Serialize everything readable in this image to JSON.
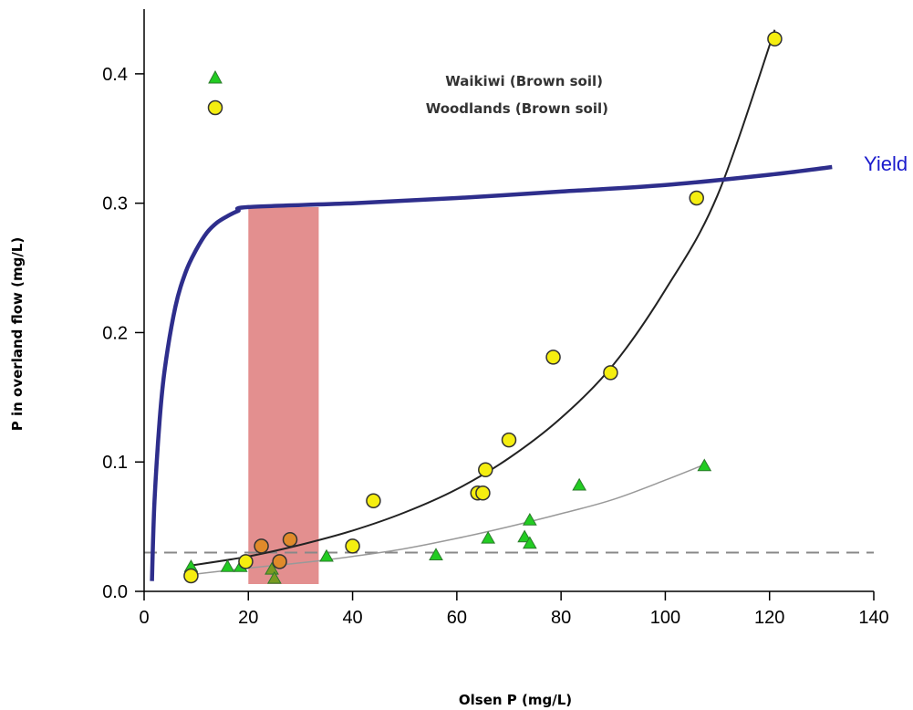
{
  "chart_data": {
    "type": "scatter",
    "xlabel": "Olsen P (mg/L)",
    "ylabel": "P in overland flow (mg/L)",
    "xlim": [
      0,
      140
    ],
    "ylim": [
      0,
      0.45
    ],
    "x_ticks": [
      "0",
      "20",
      "40",
      "60",
      "80",
      "100",
      "120",
      "140"
    ],
    "y_ticks": [
      "0.0",
      "0.1",
      "0.2",
      "0.3",
      "0.4"
    ],
    "legend": {
      "placement": "top-left",
      "entries": [
        {
          "label": "Waikiwi (Brown soil)",
          "marker": "triangle",
          "color": "#22cc22"
        },
        {
          "label": "Woodlands (Brown soil)",
          "marker": "circle",
          "color": "#f5ee10"
        }
      ]
    },
    "series": [
      {
        "name": "Waikiwi (Brown soil)",
        "marker": "triangle",
        "color": "#22cc22",
        "points": [
          [
            9,
            0.019
          ],
          [
            16,
            0.019
          ],
          [
            18.5,
            0.019
          ],
          [
            24.5,
            0.017
          ],
          [
            25,
            0.01
          ],
          [
            35,
            0.027
          ],
          [
            56,
            0.028
          ],
          [
            66,
            0.041
          ],
          [
            73,
            0.042
          ],
          [
            74,
            0.055
          ],
          [
            74,
            0.037
          ],
          [
            83.5,
            0.082
          ],
          [
            107.5,
            0.097
          ]
        ]
      },
      {
        "name": "Woodlands (Brown soil)",
        "marker": "circle",
        "color": "#f5ee10",
        "points": [
          [
            9,
            0.012
          ],
          [
            19.5,
            0.023
          ],
          [
            22.5,
            0.035
          ],
          [
            26,
            0.023
          ],
          [
            28,
            0.04
          ],
          [
            40,
            0.035
          ],
          [
            44,
            0.07
          ],
          [
            64,
            0.076
          ],
          [
            65,
            0.076
          ],
          [
            65.5,
            0.094
          ],
          [
            70,
            0.117
          ],
          [
            78.5,
            0.181
          ],
          [
            89.5,
            0.169
          ],
          [
            106,
            0.304
          ],
          [
            121,
            0.427
          ]
        ]
      }
    ],
    "fit_curves": [
      {
        "label": "Woodlands fit",
        "color": "#222222",
        "x": [
          9,
          20,
          30,
          40,
          50,
          60,
          70,
          80,
          90,
          100,
          110,
          121
        ],
        "y": [
          0.02,
          0.027,
          0.036,
          0.047,
          0.061,
          0.079,
          0.103,
          0.134,
          0.175,
          0.233,
          0.306,
          0.434
        ]
      },
      {
        "label": "Waikiwi fit",
        "color": "#999999",
        "x": [
          9,
          20,
          30,
          40,
          50,
          60,
          70,
          80,
          90,
          100,
          107.5
        ],
        "y": [
          0.013,
          0.018,
          0.022,
          0.027,
          0.033,
          0.041,
          0.05,
          0.06,
          0.071,
          0.086,
          0.098
        ]
      }
    ],
    "reference_line": {
      "y": 0.03,
      "style": "dashed",
      "color": "#888888"
    },
    "shaded_band": {
      "x_range": [
        20,
        33.5
      ],
      "color": "#d96a6a"
    },
    "yield_curve": {
      "label": "Yield",
      "color": "#2e2e8c",
      "label_color": "#1a1acc",
      "x": [
        1.5,
        2,
        3,
        4,
        6,
        8,
        10,
        12,
        14,
        16,
        18,
        20,
        40,
        60,
        80,
        100,
        120,
        132
      ],
      "y": [
        0.008,
        0.07,
        0.133,
        0.173,
        0.22,
        0.247,
        0.264,
        0.277,
        0.285,
        0.29,
        0.294,
        0.297,
        0.3,
        0.304,
        0.309,
        0.314,
        0.322,
        0.328
      ]
    }
  }
}
